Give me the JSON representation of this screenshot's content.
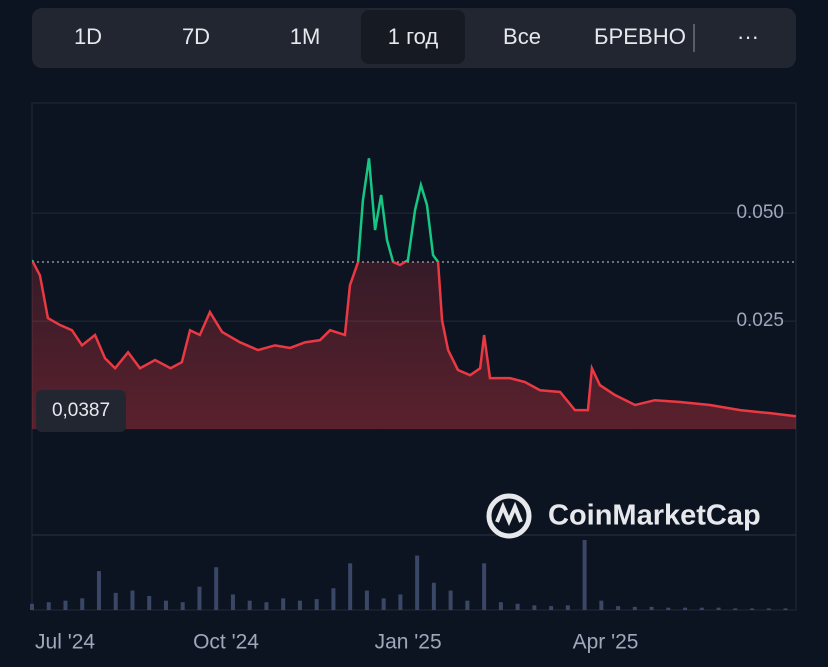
{
  "tabs": [
    "1D",
    "7D",
    "1M",
    "1 год",
    "Все",
    "БРЕВНО",
    "···"
  ],
  "selected_tab": 3,
  "watermark": "CoinMarketCap",
  "chart_data": {
    "type": "line",
    "x": [
      0,
      3.8,
      7.6,
      13.4,
      19.1,
      23.9,
      30.1,
      34.9,
      39.7,
      45.9,
      51.6,
      58.8,
      66.2,
      71.6,
      75.5,
      80.2,
      85.0,
      90.8,
      99.4,
      108.0,
      116.1,
      123.3,
      130.4,
      137.6,
      142.4,
      149.5,
      151.9,
      155.8,
      158.1,
      161.0,
      163.9,
      166.8,
      169.6,
      172.5,
      175.8,
      179.6,
      183.0,
      185.8,
      188.7,
      191.6,
      194.0,
      195.9,
      198.8,
      203.5,
      209.3,
      214.1,
      216.0,
      218.8,
      228.4,
      235.5,
      242.7,
      252.3,
      259.4,
      265.6,
      267.5,
      271.3,
      278.5,
      288.1,
      297.6,
      309.6,
      323.9,
      338.3,
      352.6,
      365
    ],
    "values": [
      0.0391,
      0.0356,
      0.0257,
      0.0241,
      0.0229,
      0.0194,
      0.0218,
      0.0164,
      0.0141,
      0.0178,
      0.0141,
      0.016,
      0.0141,
      0.0155,
      0.0229,
      0.0218,
      0.0271,
      0.0225,
      0.0201,
      0.0183,
      0.0194,
      0.0188,
      0.0201,
      0.0206,
      0.0229,
      0.0218,
      0.0333,
      0.0387,
      0.053,
      0.0627,
      0.0461,
      0.0542,
      0.0438,
      0.0387,
      0.038,
      0.0391,
      0.0507,
      0.0565,
      0.0519,
      0.0403,
      0.0387,
      0.0252,
      0.0183,
      0.0137,
      0.0125,
      0.0141,
      0.0218,
      0.0118,
      0.0118,
      0.0109,
      0.009,
      0.0086,
      0.0044,
      0.0044,
      0.0141,
      0.0102,
      0.0079,
      0.0056,
      0.0067,
      0.0063,
      0.0056,
      0.0044,
      0.0037,
      0.003
    ],
    "up_color": "#16c784",
    "down_color": "#ea3943",
    "baseline": 0.0387,
    "baseline_label": "0,0387",
    "xlim": [
      0,
      365
    ],
    "xticks": [
      {
        "value": 15.8,
        "label": "Jul '24"
      },
      {
        "value": 92.7,
        "label": "Oct '24"
      },
      {
        "value": 179.7,
        "label": "Jan '25"
      },
      {
        "value": 274,
        "label": "Apr '25"
      }
    ],
    "ylim": [
      -0.0245,
      0.0755
    ],
    "yticks": [
      {
        "value": 0.025,
        "label": "0.025"
      },
      {
        "value": 0.05,
        "label": "0.050"
      }
    ],
    "grid": true,
    "volume": {
      "color": "#3a4766",
      "x": [
        0,
        8,
        16,
        24,
        32,
        40,
        48,
        56,
        64,
        72,
        80,
        88,
        96,
        104,
        112,
        120,
        128,
        136,
        144,
        152,
        160,
        168,
        176,
        184,
        192,
        200,
        208,
        216,
        224,
        232,
        240,
        248,
        256,
        264,
        272,
        280,
        288,
        296,
        304,
        312,
        320,
        328,
        336,
        344,
        352,
        360
      ],
      "values": [
        8,
        10,
        12,
        15,
        50,
        22,
        25,
        18,
        12,
        10,
        30,
        55,
        20,
        12,
        10,
        15,
        12,
        14,
        28,
        60,
        25,
        15,
        20,
        70,
        35,
        25,
        12,
        60,
        10,
        8,
        6,
        5,
        6,
        90,
        12,
        5,
        4,
        4,
        3,
        3,
        3,
        3,
        2,
        2,
        2,
        2
      ]
    }
  }
}
